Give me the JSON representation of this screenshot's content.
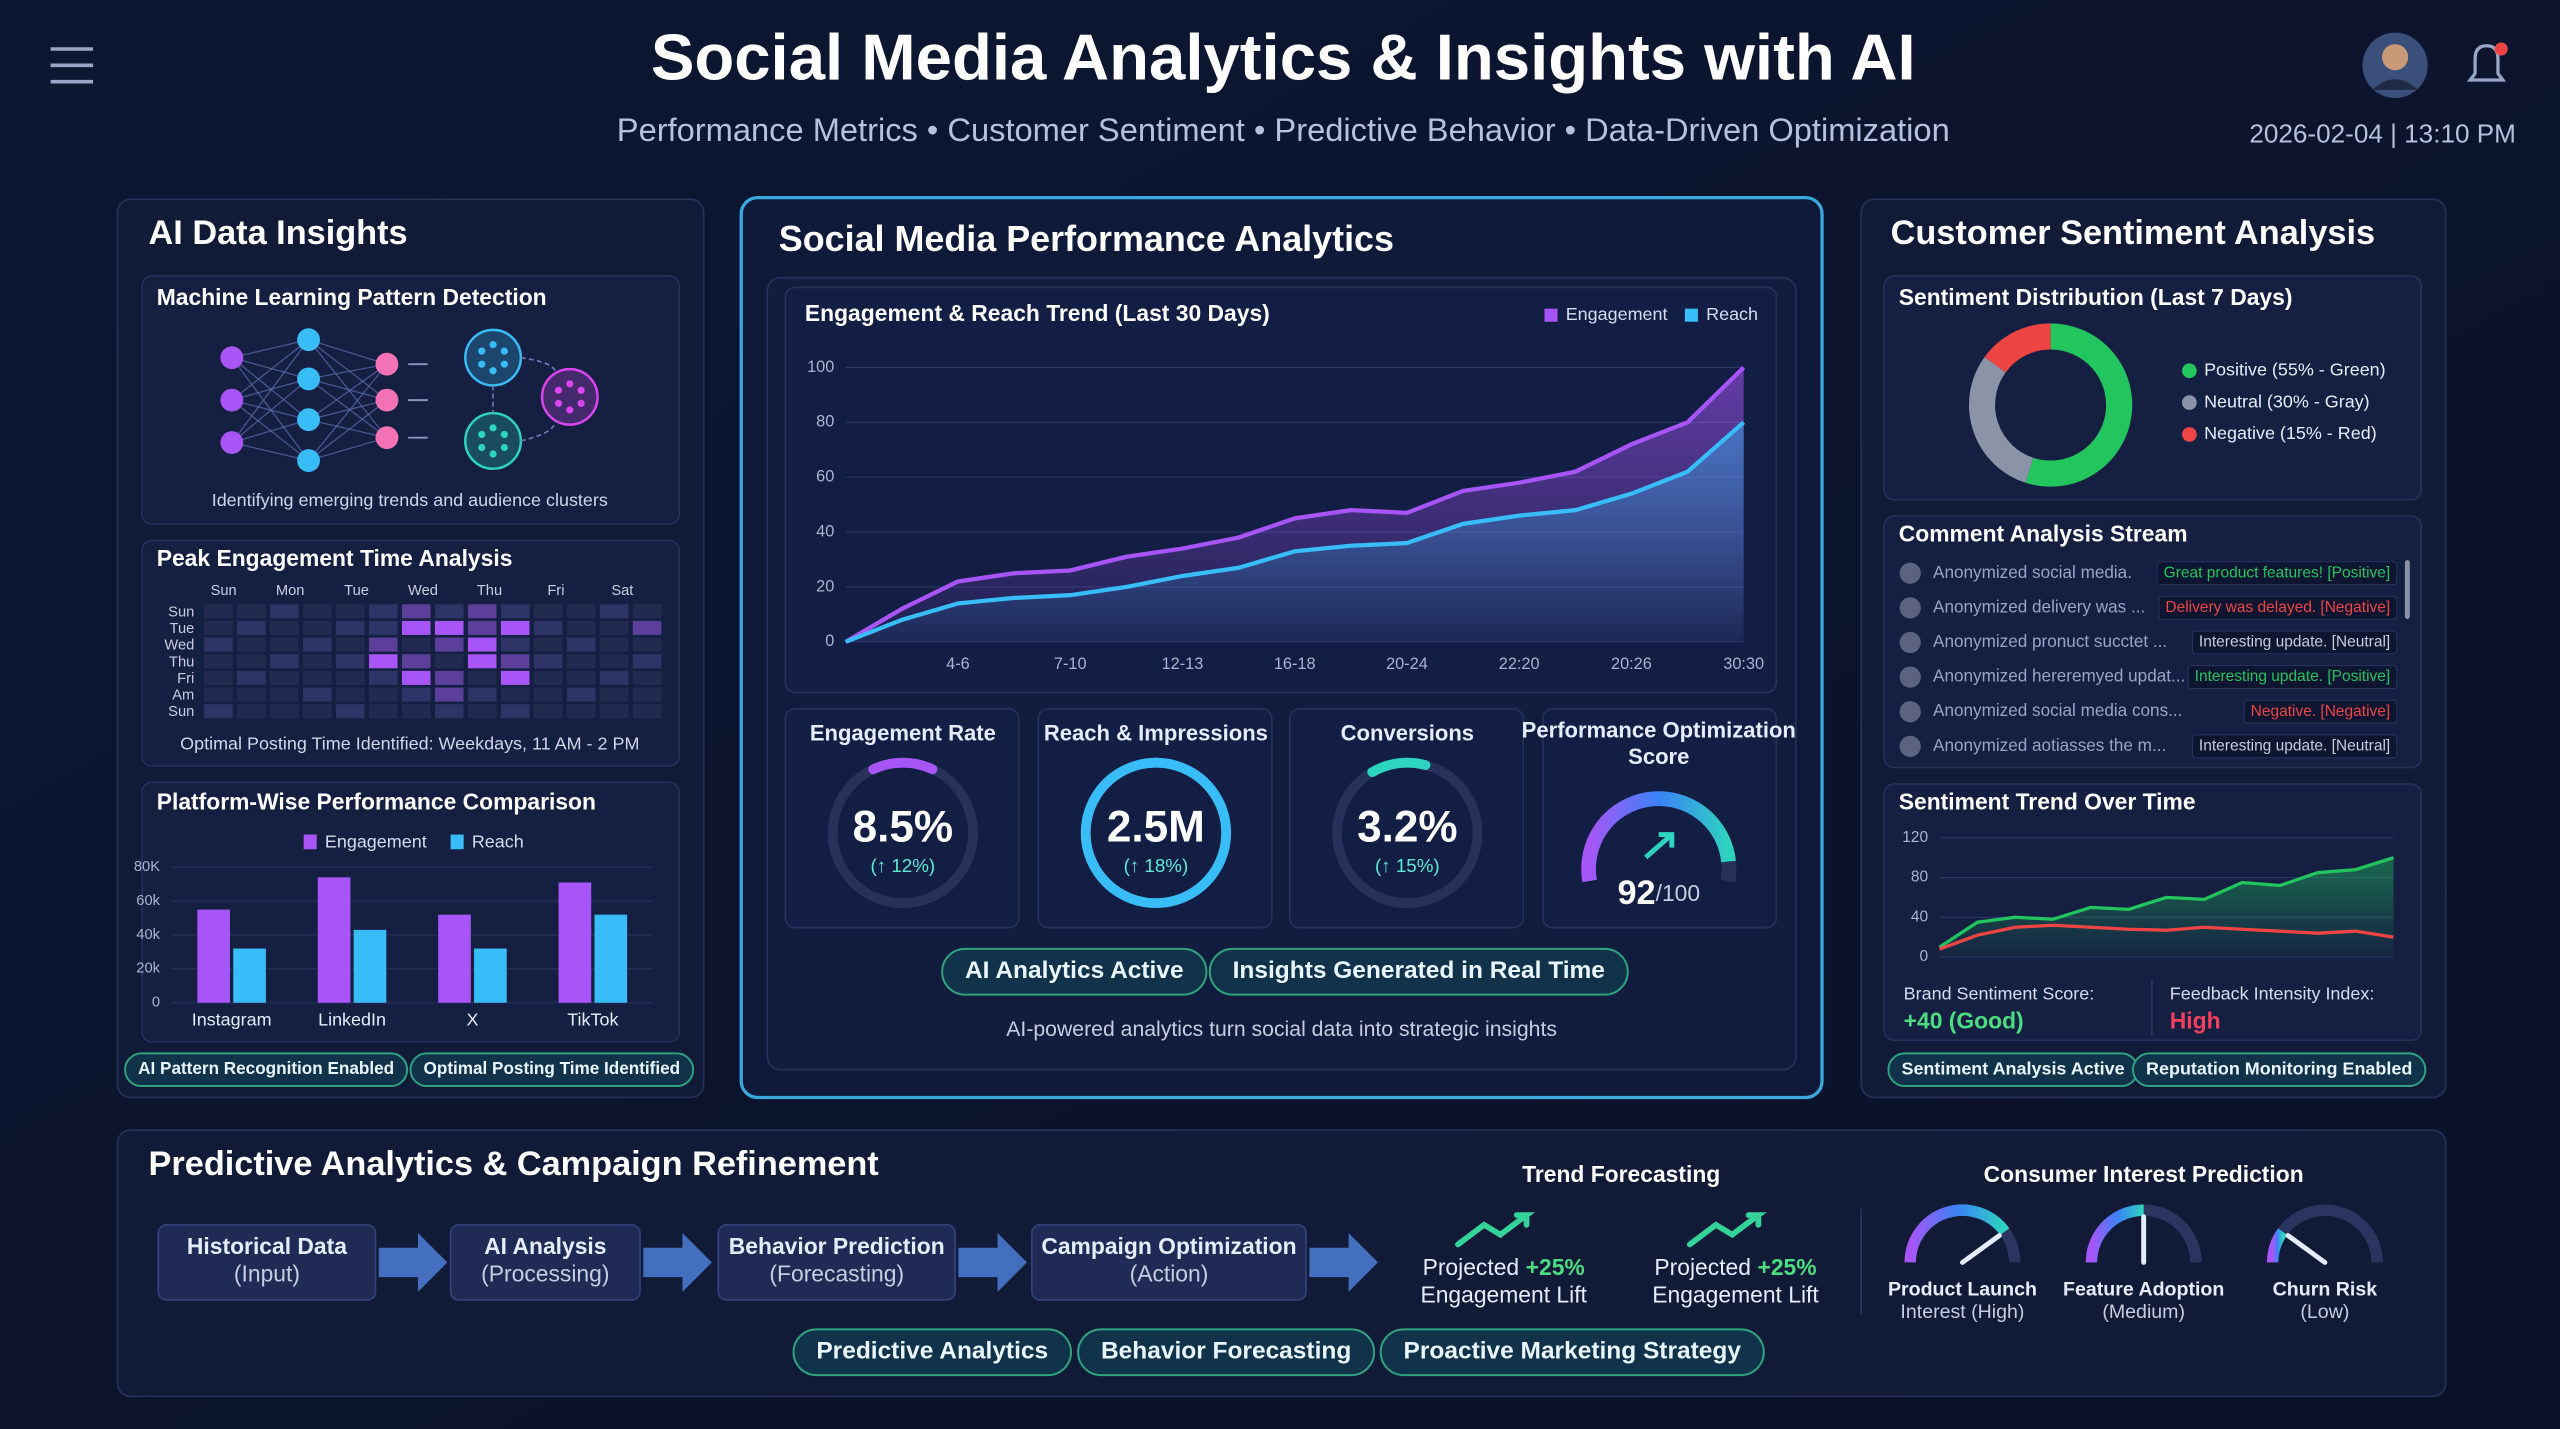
{
  "header": {
    "title": "Social Media Analytics & Insights with AI",
    "subtitle": "Performance Metrics • Customer Sentiment • Predictive Behavior • Data-Driven Optimization",
    "datetime": "2026-02-04 | 13:10 PM"
  },
  "insights": {
    "title": "AI Data Insights",
    "ml": {
      "title": "Machine Learning Pattern Detection",
      "caption": "Identifying emerging trends and audience clusters"
    },
    "peak": {
      "title": "Peak Engagement Time Analysis",
      "days": [
        "Sun",
        "Mon",
        "Tue",
        "Wed",
        "Thu",
        "Fri",
        "Sat"
      ],
      "rows": [
        "Sun",
        "Tue",
        "Wed",
        "Thu",
        "Fri",
        "Am",
        "Sun"
      ],
      "level_colors": [
        "#222a50",
        "#2e3566",
        "#5b3f9a",
        "#a855f7"
      ],
      "levels": [
        [
          0,
          0,
          1,
          0,
          0,
          1,
          2,
          1,
          2,
          1,
          0,
          0,
          1,
          0
        ],
        [
          0,
          1,
          0,
          0,
          1,
          1,
          3,
          3,
          2,
          3,
          1,
          0,
          0,
          2
        ],
        [
          1,
          0,
          0,
          1,
          0,
          2,
          0,
          2,
          3,
          1,
          0,
          1,
          0,
          0
        ],
        [
          0,
          0,
          1,
          0,
          1,
          3,
          2,
          0,
          3,
          2,
          1,
          0,
          0,
          1
        ],
        [
          0,
          1,
          0,
          0,
          0,
          1,
          3,
          2,
          0,
          3,
          0,
          0,
          1,
          0
        ],
        [
          0,
          0,
          0,
          1,
          0,
          0,
          1,
          2,
          1,
          0,
          0,
          1,
          0,
          0
        ],
        [
          1,
          0,
          0,
          0,
          1,
          0,
          0,
          1,
          0,
          1,
          0,
          0,
          0,
          0
        ]
      ],
      "caption": "Optimal Posting Time Identified: Weekdays, 11 AM - 2 PM"
    },
    "badges": [
      "AI Pattern Recognition Enabled",
      "Optimal Posting Time Identified"
    ]
  },
  "chart_data": [
    {
      "type": "bar",
      "title": "Platform-Wise Performance Comparison",
      "categories": [
        "Instagram",
        "LinkedIn",
        "X",
        "TikTok"
      ],
      "series": [
        {
          "name": "Engagement",
          "color": "#a855f7",
          "values": [
            55000,
            74000,
            52000,
            71000
          ]
        },
        {
          "name": "Reach",
          "color": "#38bdf8",
          "values": [
            32000,
            43000,
            32000,
            52000
          ]
        }
      ],
      "ylim": [
        0,
        80000
      ],
      "yticks": [
        0,
        {
          "value": 20000,
          "label": "20k"
        },
        {
          "value": 40000,
          "label": "40k"
        },
        {
          "value": 60000,
          "label": "60k"
        },
        {
          "value": 80000,
          "label": "80K"
        }
      ],
      "grid": true,
      "legend": "top"
    },
    {
      "type": "line",
      "title": "Engagement & Reach Trend (Last 30 Days)",
      "categories": [
        null,
        null,
        "4-6",
        null,
        "7-10",
        null,
        "12-13",
        null,
        "16-18",
        null,
        "20-24",
        null,
        "22:20",
        null,
        "20:26",
        null,
        "30:30"
      ],
      "series": [
        {
          "name": "Engagement",
          "color": "#a855f7",
          "values": [
            0,
            12,
            22,
            25,
            26,
            31,
            34,
            38,
            45,
            48,
            47,
            55,
            58,
            62,
            72,
            80,
            100
          ]
        },
        {
          "name": "Reach",
          "color": "#38bdf8",
          "values": [
            0,
            8,
            14,
            16,
            17,
            20,
            24,
            27,
            33,
            35,
            36,
            43,
            46,
            48,
            54,
            62,
            80
          ]
        }
      ],
      "ylim": [
        0,
        100
      ],
      "yticks": [
        0,
        20,
        40,
        60,
        80,
        100
      ],
      "grid": true,
      "legend": "top-right"
    },
    {
      "type": "pie",
      "title": "Sentiment Distribution (Last 7 Days)",
      "categories": [
        "Positive (55% - Green)",
        "Neutral (30% - Gray)",
        "Negative (15% - Red)"
      ],
      "values": [
        55,
        30,
        15
      ],
      "colors": [
        "#22c55e",
        "#8b93a7",
        "#ef4444"
      ],
      "donut": true,
      "legend": "right"
    },
    {
      "type": "line",
      "title": "Sentiment Trend Over Time",
      "series": [
        {
          "color": "#22c55e",
          "values": [
            10,
            35,
            40,
            38,
            50,
            48,
            60,
            58,
            75,
            72,
            85,
            88,
            100
          ]
        },
        {
          "color": "#ef4444",
          "values": [
            8,
            22,
            30,
            32,
            30,
            28,
            27,
            30,
            28,
            26,
            24,
            26,
            20
          ]
        }
      ],
      "ylim": [
        0,
        120
      ],
      "yticks": [
        0,
        40,
        80,
        120
      ],
      "grid": true
    }
  ],
  "performance": {
    "title": "Social Media Performance Analytics",
    "kpis": [
      {
        "label": "Engagement Rate",
        "value_label": "8.5%",
        "change": "(↑ 12%)"
      },
      {
        "label": "Reach & Impressions",
        "value_label": "2.5M",
        "change": "(↑ 18%)"
      },
      {
        "label": "Conversions",
        "value_label": "3.2%",
        "change": "(↑ 15%)"
      }
    ],
    "score": {
      "label": "Performance Optimization Score",
      "value": 92,
      "scale": [
        0,
        100
      ],
      "scale_label": "/100"
    },
    "badges": [
      "AI Analytics Active",
      "Insights Generated in Real Time"
    ],
    "caption": "AI-powered analytics turn social data into strategic insights"
  },
  "sentiment": {
    "title": "Customer Sentiment Analysis",
    "stream": {
      "title": "Comment Analysis Stream",
      "rows": [
        {
          "text": "Anonymized social media.",
          "tag": "Great product features! [Positive]",
          "color": "#22c55e"
        },
        {
          "text": "Anonymized delivery was ...",
          "tag": "Delivery was delayed. [Negative]",
          "color": "#ef4444"
        },
        {
          "text": "Anonymized pronuct succtet ...",
          "tag": "Interesting update. [Neutral]",
          "color": "#c7cde0"
        },
        {
          "text": "Anonymized hereremyed updat...",
          "tag": "Interesting update. [Positive]",
          "color": "#22c55e"
        },
        {
          "text": "Anonymized social media cons...",
          "tag": "Negative. [Negative]",
          "color": "#ef4444"
        },
        {
          "text": "Anonymized aotiasses the m...",
          "tag": "Interesting update. [Neutral]",
          "color": "#c7cde0"
        }
      ]
    },
    "scores": [
      {
        "label": "Brand Sentiment Score:",
        "value": "+40 (Good)",
        "color": "#4ade80"
      },
      {
        "label": "Feedback Intensity Index:",
        "value": "High",
        "color": "#f43f5e"
      }
    ],
    "badges": [
      "Sentiment Analysis Active",
      "Reputation Monitoring Enabled"
    ]
  },
  "predictive": {
    "title": "Predictive Analytics & Campaign Refinement",
    "steps": [
      {
        "title": "Historical Data",
        "sub": "(Input)"
      },
      {
        "title": "AI Analysis",
        "sub": "(Processing)"
      },
      {
        "title": "Behavior Prediction",
        "sub": "(Forecasting)"
      },
      {
        "title": "Campaign Optimization",
        "sub": "(Action)"
      }
    ],
    "forecast": {
      "title": "Trend Forecasting",
      "items": [
        {
          "text": "Projected",
          "value": "+25%",
          "sub": "Engagement Lift"
        },
        {
          "text": "Projected",
          "value": "+25%",
          "sub": "Engagement Lift"
        }
      ]
    },
    "interest": {
      "title": "Consumer Interest Prediction",
      "range": [
        0,
        100
      ],
      "gauges": [
        {
          "label": "Product Launch",
          "level": "Interest (High)",
          "value": 80
        },
        {
          "label": "Feature Adoption",
          "level": "(Medium)",
          "value": 50
        },
        {
          "label": "Churn Risk",
          "level": "(Low)",
          "value": 20
        }
      ]
    },
    "badges": [
      "Predictive Analytics",
      "Behavior Forecasting",
      "Proactive Marketing Strategy"
    ]
  }
}
